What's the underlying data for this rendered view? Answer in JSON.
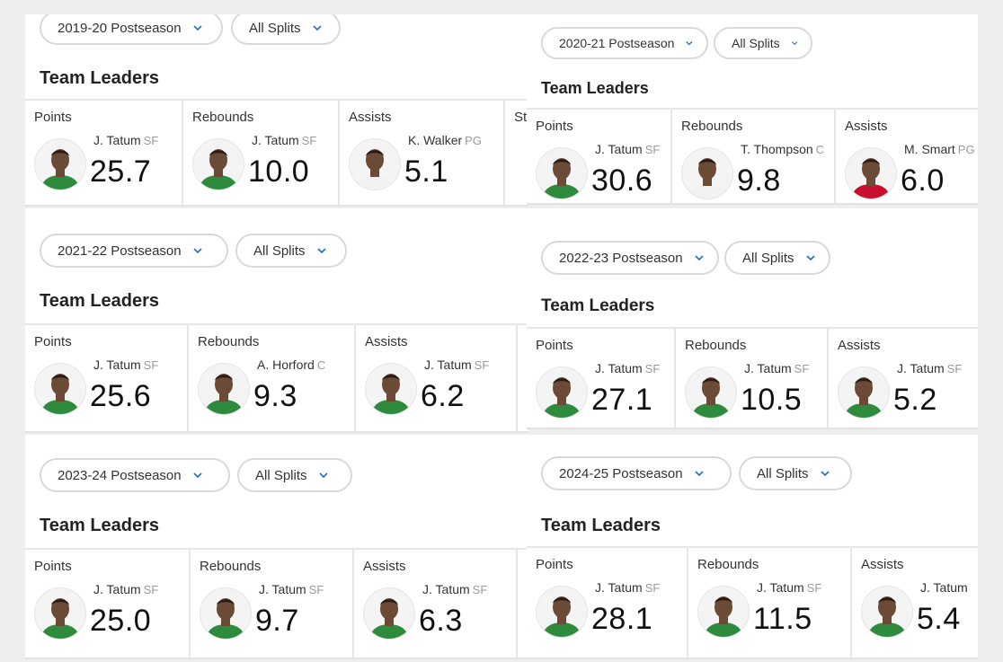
{
  "panels": [
    {
      "season": "2019-20 Postseason",
      "splits": "All Splits",
      "title": "Team Leaders",
      "leaders": [
        {
          "category": "Points",
          "name": "J. Tatum",
          "pos": "SF",
          "value": "25.7",
          "jersey": "green"
        },
        {
          "category": "Rebounds",
          "name": "J. Tatum",
          "pos": "SF",
          "value": "10.0",
          "jersey": "green"
        },
        {
          "category": "Assists",
          "name": "K. Walker",
          "pos": "PG",
          "value": "5.1",
          "jersey": "white"
        },
        {
          "category": "St",
          "name": "",
          "pos": "",
          "value": "",
          "jersey": "none"
        }
      ]
    },
    {
      "season": "2020-21 Postseason",
      "splits": "All Splits",
      "title": "Team Leaders",
      "leaders": [
        {
          "category": "Points",
          "name": "J. Tatum",
          "pos": "SF",
          "value": "30.6",
          "jersey": "green"
        },
        {
          "category": "Rebounds",
          "name": "T. Thompson",
          "pos": "C",
          "value": "9.8",
          "jersey": "white"
        },
        {
          "category": "Assists",
          "name": "M. Smart",
          "pos": "PG",
          "value": "6.0",
          "jersey": "red"
        }
      ]
    },
    {
      "season": "2021-22 Postseason",
      "splits": "All Splits",
      "title": "Team Leaders",
      "leaders": [
        {
          "category": "Points",
          "name": "J. Tatum",
          "pos": "SF",
          "value": "25.6",
          "jersey": "green"
        },
        {
          "category": "Rebounds",
          "name": "A. Horford",
          "pos": "C",
          "value": "9.3",
          "jersey": "green"
        },
        {
          "category": "Assists",
          "name": "J. Tatum",
          "pos": "SF",
          "value": "6.2",
          "jersey": "green"
        }
      ]
    },
    {
      "season": "2022-23 Postseason",
      "splits": "All Splits",
      "title": "Team Leaders",
      "leaders": [
        {
          "category": "Points",
          "name": "J. Tatum",
          "pos": "SF",
          "value": "27.1",
          "jersey": "green"
        },
        {
          "category": "Rebounds",
          "name": "J. Tatum",
          "pos": "SF",
          "value": "10.5",
          "jersey": "green"
        },
        {
          "category": "Assists",
          "name": "J. Tatum",
          "pos": "SF",
          "value": "5.2",
          "jersey": "green"
        }
      ]
    },
    {
      "season": "2023-24 Postseason",
      "splits": "All Splits",
      "title": "Team Leaders",
      "leaders": [
        {
          "category": "Points",
          "name": "J. Tatum",
          "pos": "SF",
          "value": "25.0",
          "jersey": "green"
        },
        {
          "category": "Rebounds",
          "name": "J. Tatum",
          "pos": "SF",
          "value": "9.7",
          "jersey": "green"
        },
        {
          "category": "Assists",
          "name": "J. Tatum",
          "pos": "SF",
          "value": "6.3",
          "jersey": "green"
        }
      ]
    },
    {
      "season": "2024-25 Postseason",
      "splits": "All Splits",
      "title": "Team Leaders",
      "leaders": [
        {
          "category": "Points",
          "name": "J. Tatum",
          "pos": "SF",
          "value": "28.1",
          "jersey": "green"
        },
        {
          "category": "Rebounds",
          "name": "J. Tatum",
          "pos": "SF",
          "value": "11.5",
          "jersey": "green"
        },
        {
          "category": "Assists",
          "name": "J. Tatum",
          "pos": "",
          "value": "5.4",
          "jersey": "green"
        }
      ]
    }
  ],
  "colors": {
    "accent": "#1f6fd1",
    "green": "#2e8b3e",
    "white": "#f2f2f2",
    "red": "#c8102e",
    "skin": "#6b4a36"
  }
}
